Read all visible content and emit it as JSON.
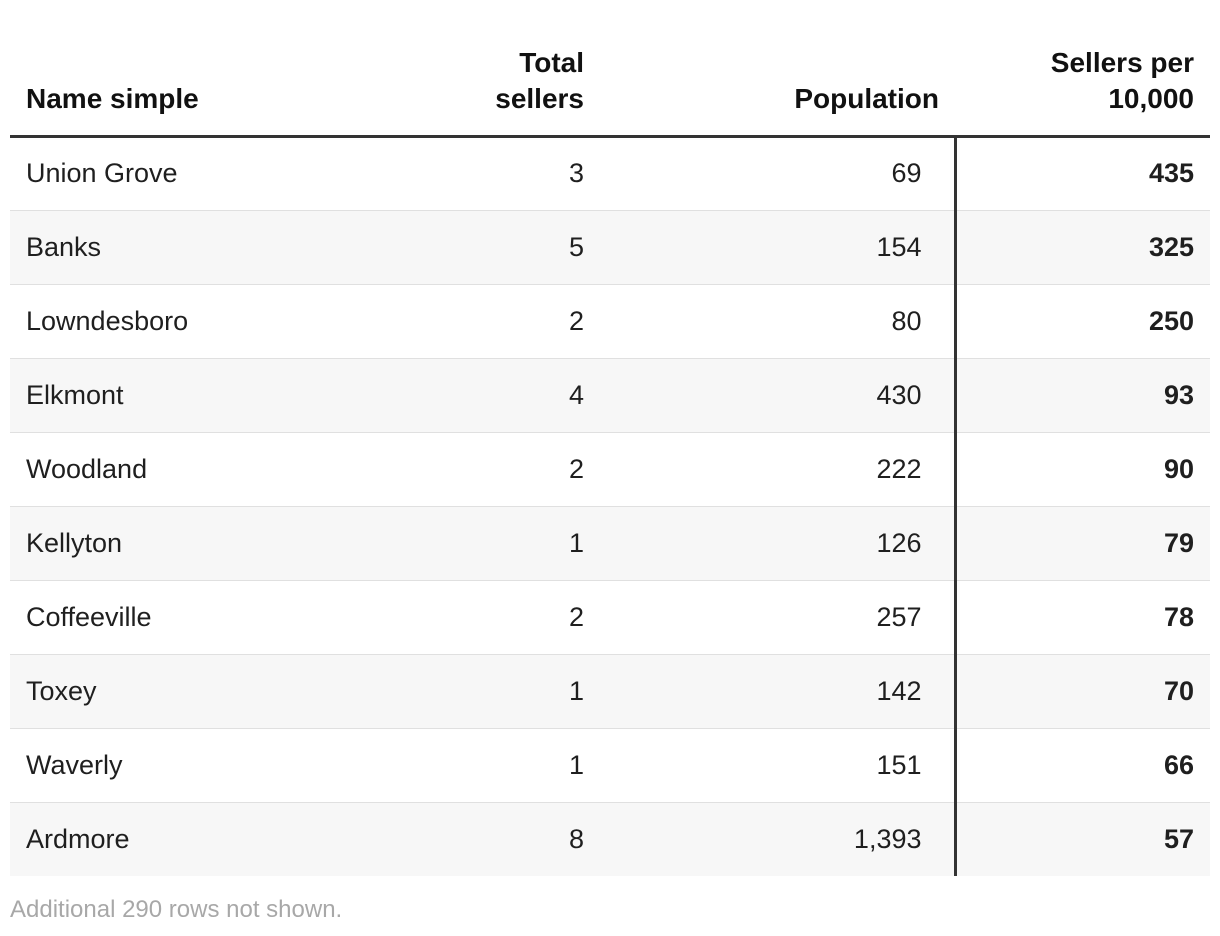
{
  "chart_data": {
    "type": "table",
    "columns": [
      "Name simple",
      "Total sellers",
      "Population",
      "Sellers per 10,000"
    ],
    "rows": [
      {
        "name": "Union Grove",
        "total_sellers": "3",
        "population": "69",
        "sellers_per_10000": "435"
      },
      {
        "name": "Banks",
        "total_sellers": "5",
        "population": "154",
        "sellers_per_10000": "325"
      },
      {
        "name": "Lowndesboro",
        "total_sellers": "2",
        "population": "80",
        "sellers_per_10000": "250"
      },
      {
        "name": "Elkmont",
        "total_sellers": "4",
        "population": "430",
        "sellers_per_10000": "93"
      },
      {
        "name": "Woodland",
        "total_sellers": "2",
        "population": "222",
        "sellers_per_10000": "90"
      },
      {
        "name": "Kellyton",
        "total_sellers": "1",
        "population": "126",
        "sellers_per_10000": "79"
      },
      {
        "name": "Coffeeville",
        "total_sellers": "2",
        "population": "257",
        "sellers_per_10000": "78"
      },
      {
        "name": "Toxey",
        "total_sellers": "1",
        "population": "142",
        "sellers_per_10000": "70"
      },
      {
        "name": "Waverly",
        "total_sellers": "1",
        "population": "151",
        "sellers_per_10000": "66"
      },
      {
        "name": "Ardmore",
        "total_sellers": "8",
        "population": "1,393",
        "sellers_per_10000": "57"
      }
    ],
    "footnote": "Additional 290 rows not shown."
  }
}
